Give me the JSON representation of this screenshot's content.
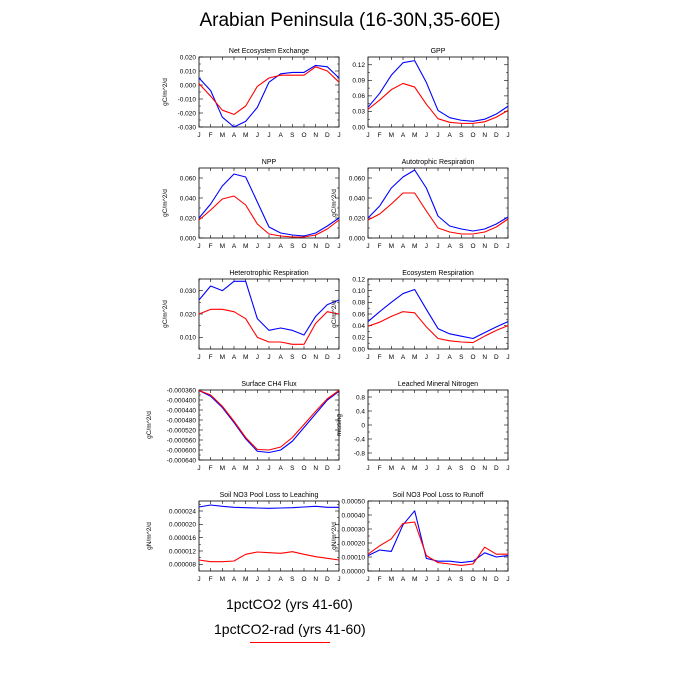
{
  "title": "Arabian Peninsula (16-30N,35-60E)",
  "legend": {
    "items": [
      {
        "label": "1pctCO2 (yrs 41-60)",
        "color": "#0000ff"
      },
      {
        "label": "1pctCO2-rad (yrs 41-60)",
        "color": "#ff0000"
      }
    ]
  },
  "colors": {
    "series_a": "#0000ff",
    "series_b": "#ff0000"
  },
  "chart_data": [
    {
      "type": "line",
      "title": "Net Ecosystem Exchange",
      "ylabel": "gC/m^2/d",
      "x": [
        "J",
        "F",
        "M",
        "A",
        "M",
        "J",
        "J",
        "A",
        "S",
        "O",
        "N",
        "D",
        "J"
      ],
      "ylim": [
        -0.03,
        0.02
      ],
      "yticks": [
        "-0.030",
        "-0.020",
        "-0.010",
        "0.000",
        "0.010",
        "0.020"
      ],
      "ytick_values": [
        -0.03,
        -0.02,
        -0.01,
        0.0,
        0.01,
        0.02
      ],
      "yticks_minor": [
        -0.025,
        -0.015,
        -0.005,
        0.005,
        0.015
      ],
      "series": [
        {
          "name": "1pctCO2 (yrs 41-60)",
          "values": [
            0.005,
            -0.004,
            -0.023,
            -0.03,
            -0.026,
            -0.016,
            0.002,
            0.008,
            0.009,
            0.009,
            0.014,
            0.013,
            0.005
          ]
        },
        {
          "name": "1pctCO2-rad (yrs 41-60)",
          "values": [
            0.001,
            -0.008,
            -0.018,
            -0.021,
            -0.015,
            -0.001,
            0.005,
            0.007,
            0.007,
            0.007,
            0.013,
            0.01,
            0.002
          ]
        }
      ]
    },
    {
      "type": "line",
      "title": "GPP",
      "ylabel": "",
      "x": [
        "J",
        "F",
        "M",
        "A",
        "M",
        "J",
        "J",
        "A",
        "S",
        "O",
        "N",
        "D",
        "J"
      ],
      "ylim": [
        0.0,
        0.135
      ],
      "yticks": [
        "0.00",
        "0.03",
        "0.06",
        "0.09",
        "0.12"
      ],
      "ytick_values": [
        0.0,
        0.03,
        0.06,
        0.09,
        0.12
      ],
      "yticks_minor": [
        0.015,
        0.045,
        0.075,
        0.105
      ],
      "series": [
        {
          "name": "1pctCO2 (yrs 41-60)",
          "values": [
            0.038,
            0.065,
            0.1,
            0.124,
            0.128,
            0.086,
            0.032,
            0.018,
            0.013,
            0.011,
            0.015,
            0.025,
            0.04
          ]
        },
        {
          "name": "1pctCO2-rad (yrs 41-60)",
          "values": [
            0.034,
            0.052,
            0.072,
            0.084,
            0.077,
            0.044,
            0.016,
            0.009,
            0.007,
            0.007,
            0.01,
            0.019,
            0.032
          ]
        }
      ]
    },
    {
      "type": "line",
      "title": "NPP",
      "ylabel": "gC/m^2/d",
      "x": [
        "J",
        "F",
        "M",
        "A",
        "M",
        "J",
        "J",
        "A",
        "S",
        "O",
        "N",
        "D",
        "J"
      ],
      "ylim": [
        0.0,
        0.07
      ],
      "yticks": [
        "0.000",
        "0.020",
        "0.040",
        "0.060"
      ],
      "ytick_values": [
        0.0,
        0.02,
        0.04,
        0.06
      ],
      "yticks_minor": [
        0.01,
        0.03,
        0.05
      ],
      "series": [
        {
          "name": "1pctCO2 (yrs 41-60)",
          "values": [
            0.02,
            0.034,
            0.052,
            0.064,
            0.061,
            0.036,
            0.011,
            0.005,
            0.003,
            0.002,
            0.005,
            0.012,
            0.02
          ]
        },
        {
          "name": "1pctCO2-rad (yrs 41-60)",
          "values": [
            0.018,
            0.028,
            0.039,
            0.042,
            0.033,
            0.014,
            0.004,
            0.002,
            0.001,
            0.001,
            0.003,
            0.009,
            0.018
          ]
        }
      ]
    },
    {
      "type": "line",
      "title": "Autotrophic Respiration",
      "ylabel": "gC/m^2/d",
      "x": [
        "J",
        "F",
        "M",
        "A",
        "M",
        "J",
        "J",
        "A",
        "S",
        "O",
        "N",
        "D",
        "J"
      ],
      "ylim": [
        0.0,
        0.07
      ],
      "yticks": [
        "0.000",
        "0.020",
        "0.040",
        "0.060"
      ],
      "ytick_values": [
        0.0,
        0.02,
        0.04,
        0.06
      ],
      "yticks_minor": [
        0.01,
        0.03,
        0.05
      ],
      "series": [
        {
          "name": "1pctCO2 (yrs 41-60)",
          "values": [
            0.02,
            0.032,
            0.05,
            0.061,
            0.068,
            0.05,
            0.022,
            0.012,
            0.009,
            0.007,
            0.009,
            0.014,
            0.021
          ]
        },
        {
          "name": "1pctCO2-rad (yrs 41-60)",
          "values": [
            0.018,
            0.024,
            0.034,
            0.045,
            0.045,
            0.027,
            0.01,
            0.006,
            0.004,
            0.004,
            0.006,
            0.011,
            0.019
          ]
        }
      ]
    },
    {
      "type": "line",
      "title": "Heterotrophic Respiration",
      "ylabel": "gC/m^2/d",
      "x": [
        "J",
        "F",
        "M",
        "A",
        "M",
        "J",
        "J",
        "A",
        "S",
        "O",
        "N",
        "D",
        "J"
      ],
      "ylim": [
        0.005,
        0.035
      ],
      "yticks": [
        "0.010",
        "0.020",
        "0.030"
      ],
      "ytick_values": [
        0.01,
        0.02,
        0.03
      ],
      "yticks_minor": [
        0.005,
        0.015,
        0.025,
        0.035
      ],
      "series": [
        {
          "name": "1pctCO2 (yrs 41-60)",
          "values": [
            0.026,
            0.032,
            0.03,
            0.034,
            0.034,
            0.018,
            0.013,
            0.014,
            0.013,
            0.011,
            0.019,
            0.024,
            0.026
          ]
        },
        {
          "name": "1pctCO2-rad (yrs 41-60)",
          "values": [
            0.02,
            0.022,
            0.022,
            0.021,
            0.018,
            0.01,
            0.008,
            0.008,
            0.007,
            0.007,
            0.016,
            0.021,
            0.02
          ]
        }
      ]
    },
    {
      "type": "line",
      "title": "Ecosystem Respiration",
      "ylabel": "gC/m^2/d",
      "x": [
        "J",
        "F",
        "M",
        "A",
        "M",
        "J",
        "J",
        "A",
        "S",
        "O",
        "N",
        "D",
        "J"
      ],
      "ylim": [
        0.0,
        0.12
      ],
      "yticks": [
        "0.00",
        "0.02",
        "0.04",
        "0.06",
        "0.08",
        "0.10",
        "0.12"
      ],
      "ytick_values": [
        0.0,
        0.02,
        0.04,
        0.06,
        0.08,
        0.1,
        0.12
      ],
      "yticks_minor": [
        0.01,
        0.03,
        0.05,
        0.07,
        0.09,
        0.11
      ],
      "series": [
        {
          "name": "1pctCO2 (yrs 41-60)",
          "values": [
            0.047,
            0.064,
            0.08,
            0.095,
            0.102,
            0.068,
            0.035,
            0.026,
            0.022,
            0.018,
            0.028,
            0.038,
            0.047
          ]
        },
        {
          "name": "1pctCO2-rad (yrs 41-60)",
          "values": [
            0.039,
            0.046,
            0.056,
            0.064,
            0.062,
            0.038,
            0.018,
            0.014,
            0.012,
            0.011,
            0.022,
            0.032,
            0.04
          ]
        }
      ]
    },
    {
      "type": "line",
      "title": "Surface CH4 Flux",
      "ylabel": "gC/m^2/d",
      "x": [
        "J",
        "F",
        "M",
        "A",
        "M",
        "J",
        "J",
        "A",
        "S",
        "O",
        "N",
        "D",
        "J"
      ],
      "ylim": [
        -0.00064,
        -0.00036
      ],
      "yticks": [
        "-0.000360",
        "-0.000400",
        "-0.000440",
        "-0.000480",
        "-0.000520",
        "-0.000560",
        "-0.000600",
        "-0.000640"
      ],
      "ytick_values": [
        -0.00036,
        -0.0004,
        -0.00044,
        -0.00048,
        -0.00052,
        -0.00056,
        -0.0006,
        -0.00064
      ],
      "yticks_minor": [
        -0.00038,
        -0.00042,
        -0.00046,
        -0.0005,
        -0.00054,
        -0.00058,
        -0.00062
      ],
      "series": [
        {
          "name": "1pctCO2 (yrs 41-60)",
          "values": [
            -0.000362,
            -0.000385,
            -0.00043,
            -0.00049,
            -0.000555,
            -0.000605,
            -0.00061,
            -0.0006,
            -0.000565,
            -0.00051,
            -0.000455,
            -0.0004,
            -0.000365
          ]
        },
        {
          "name": "1pctCO2-rad (yrs 41-60)",
          "values": [
            -0.000362,
            -0.00038,
            -0.000425,
            -0.000485,
            -0.00055,
            -0.000598,
            -0.0006,
            -0.000588,
            -0.00055,
            -0.000498,
            -0.000445,
            -0.000395,
            -0.000362
          ]
        }
      ]
    },
    {
      "type": "line",
      "title": "Leached Mineral Nitrogen",
      "ylabel": "missing",
      "x": [
        "J",
        "F",
        "M",
        "A",
        "M",
        "J",
        "J",
        "A",
        "S",
        "O",
        "N",
        "D",
        "J"
      ],
      "ylim": [
        -1.0,
        1.0
      ],
      "yticks": [
        "-0.8",
        "-0.4",
        "0",
        "0.4",
        "0.8"
      ],
      "ytick_values": [
        -0.8,
        -0.4,
        0,
        0.4,
        0.8
      ],
      "yticks_minor": [
        -0.6,
        -0.2,
        0.2,
        0.6
      ],
      "series": []
    },
    {
      "type": "line",
      "title": "Soil NO3 Pool Loss to Leaching",
      "ylabel": "gN/m^2/d",
      "x": [
        "J",
        "F",
        "M",
        "A",
        "M",
        "J",
        "J",
        "A",
        "S",
        "O",
        "N",
        "D",
        "J"
      ],
      "ylim": [
        6e-06,
        2.7e-05
      ],
      "yticks": [
        "0.000008",
        "0.000012",
        "0.000016",
        "0.000020",
        "0.000024"
      ],
      "ytick_values": [
        8e-06,
        1.2e-05,
        1.6e-05,
        2e-05,
        2.4e-05
      ],
      "yticks_minor": [
        1e-05,
        1.4e-05,
        1.8e-05,
        2.2e-05,
        2.6e-05
      ],
      "series": [
        {
          "name": "1pctCO2 (yrs 41-60)",
          "values": [
            2.52e-05,
            2.58e-05,
            2.54e-05,
            2.51e-05,
            2.5e-05,
            2.49e-05,
            2.48e-05,
            2.49e-05,
            2.5e-05,
            2.52e-05,
            2.54e-05,
            2.51e-05,
            2.51e-05
          ]
        },
        {
          "name": "1pctCO2-rad (yrs 41-60)",
          "values": [
            9.3e-06,
            8.8e-06,
            8.8e-06,
            9e-06,
            1.1e-05,
            1.17e-05,
            1.15e-05,
            1.13e-05,
            1.18e-05,
            1.1e-05,
            1.03e-05,
            9.8e-06,
            9.3e-06
          ]
        }
      ]
    },
    {
      "type": "line",
      "title": "Soil NO3 Pool Loss to Runoff",
      "ylabel": "gN/m^2/d",
      "x": [
        "J",
        "F",
        "M",
        "A",
        "M",
        "J",
        "J",
        "A",
        "S",
        "O",
        "N",
        "D",
        "J"
      ],
      "ylim": [
        0.0,
        0.0005
      ],
      "yticks": [
        "0.00000",
        "0.00010",
        "0.00020",
        "0.00030",
        "0.00040",
        "0.00050"
      ],
      "ytick_values": [
        0.0,
        0.0001,
        0.0002,
        0.0003,
        0.0004,
        0.0005
      ],
      "yticks_minor": [
        5e-05,
        0.00015,
        0.00025,
        0.00035,
        0.00045
      ],
      "series": [
        {
          "name": "1pctCO2 (yrs 41-60)",
          "values": [
            0.00011,
            0.00015,
            0.00014,
            0.00033,
            0.00043,
            9e-05,
            7e-05,
            7e-05,
            6e-05,
            7e-05,
            0.00013,
            0.0001,
            0.00011
          ]
        },
        {
          "name": "1pctCO2-rad (yrs 41-60)",
          "values": [
            0.00012,
            0.00018,
            0.00023,
            0.00034,
            0.00035,
            0.00011,
            6e-05,
            5e-05,
            4e-05,
            5e-05,
            0.00017,
            0.00012,
            0.00012
          ]
        }
      ]
    }
  ]
}
